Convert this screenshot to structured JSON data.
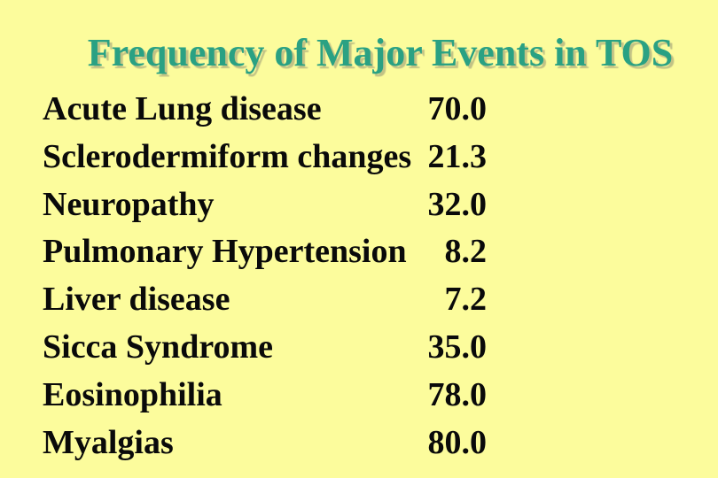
{
  "slide": {
    "title": "Frequency of Major Events in TOS",
    "background_color": "#FCFC9C",
    "title_color": "#2AA183",
    "title_shadow_color": "#91916F",
    "body_text_color": "#0A0A0A"
  },
  "rows": [
    {
      "label": "Acute Lung disease",
      "value": "70.0"
    },
    {
      "label": "Sclerodermiform changes",
      "value": "21.3"
    },
    {
      "label": "Neuropathy",
      "value": "32.0"
    },
    {
      "label": "Pulmonary Hypertension",
      "value": "8.2"
    },
    {
      "label": "Liver disease",
      "value": "7.2"
    },
    {
      "label": "Sicca Syndrome",
      "value": "35.0"
    },
    {
      "label": "Eosinophilia",
      "value": "78.0"
    },
    {
      "label": "Myalgias",
      "value": "80.0"
    }
  ],
  "chart_data": {
    "type": "table",
    "title": "Frequency of Major Events in TOS",
    "categories": [
      "Acute Lung disease",
      "Sclerodermiform changes",
      "Neuropathy",
      "Pulmonary Hypertension",
      "Liver disease",
      "Sicca Syndrome",
      "Eosinophilia",
      "Myalgias"
    ],
    "values": [
      70.0,
      21.3,
      32.0,
      8.2,
      7.2,
      35.0,
      78.0,
      80.0
    ]
  }
}
